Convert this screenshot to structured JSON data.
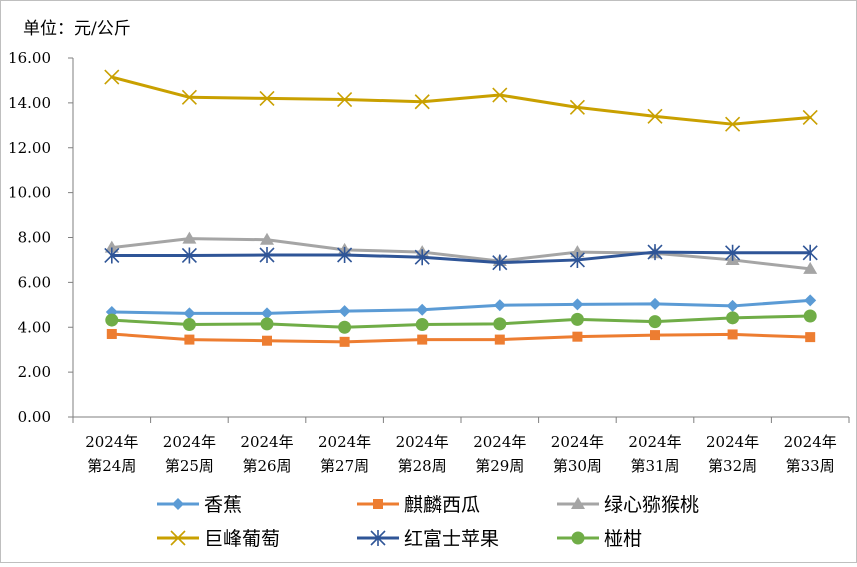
{
  "chart_data": {
    "type": "line",
    "unit_label": "单位：元/公斤",
    "categories": [
      [
        "2024年",
        "第24周"
      ],
      [
        "2024年",
        "第25周"
      ],
      [
        "2024年",
        "第26周"
      ],
      [
        "2024年",
        "第27周"
      ],
      [
        "2024年",
        "第28周"
      ],
      [
        "2024年",
        "第29周"
      ],
      [
        "2024年",
        "第30周"
      ],
      [
        "2024年",
        "第31周"
      ],
      [
        "2024年",
        "第32周"
      ],
      [
        "2024年",
        "第33周"
      ]
    ],
    "ylim": [
      0,
      16
    ],
    "yticks": [
      0,
      2,
      4,
      6,
      8,
      10,
      12,
      14,
      16
    ],
    "ytick_labels": [
      "0.00",
      "2.00",
      "4.00",
      "6.00",
      "8.00",
      "10.00",
      "12.00",
      "14.00",
      "16.00"
    ],
    "grid": false,
    "legend_position": "bottom",
    "series": [
      {
        "name": "香蕉",
        "color": "#5b9bd5",
        "marker": "diamond",
        "values": [
          4.68,
          4.62,
          4.62,
          4.72,
          4.78,
          4.98,
          5.02,
          5.04,
          4.95,
          5.2
        ]
      },
      {
        "name": "麒麟西瓜",
        "color": "#ed7d31",
        "marker": "square",
        "values": [
          3.7,
          3.45,
          3.4,
          3.35,
          3.45,
          3.45,
          3.58,
          3.65,
          3.68,
          3.56
        ]
      },
      {
        "name": "绿心猕猴桃",
        "color": "#a5a5a5",
        "marker": "triangle",
        "values": [
          7.55,
          7.95,
          7.9,
          7.45,
          7.35,
          6.95,
          7.35,
          7.3,
          7.0,
          6.6
        ]
      },
      {
        "name": "巨峰葡萄",
        "color": "#c9a000",
        "marker": "x",
        "values": [
          15.15,
          14.25,
          14.2,
          14.15,
          14.05,
          14.35,
          13.8,
          13.4,
          13.05,
          13.35
        ]
      },
      {
        "name": "红富士苹果",
        "color": "#2f5597",
        "marker": "star",
        "values": [
          7.2,
          7.2,
          7.22,
          7.22,
          7.12,
          6.88,
          7.0,
          7.35,
          7.32,
          7.32
        ]
      },
      {
        "name": "椪柑",
        "color": "#70ad47",
        "marker": "circle",
        "values": [
          4.32,
          4.12,
          4.15,
          4.0,
          4.12,
          4.15,
          4.35,
          4.25,
          4.42,
          4.5
        ]
      }
    ]
  }
}
